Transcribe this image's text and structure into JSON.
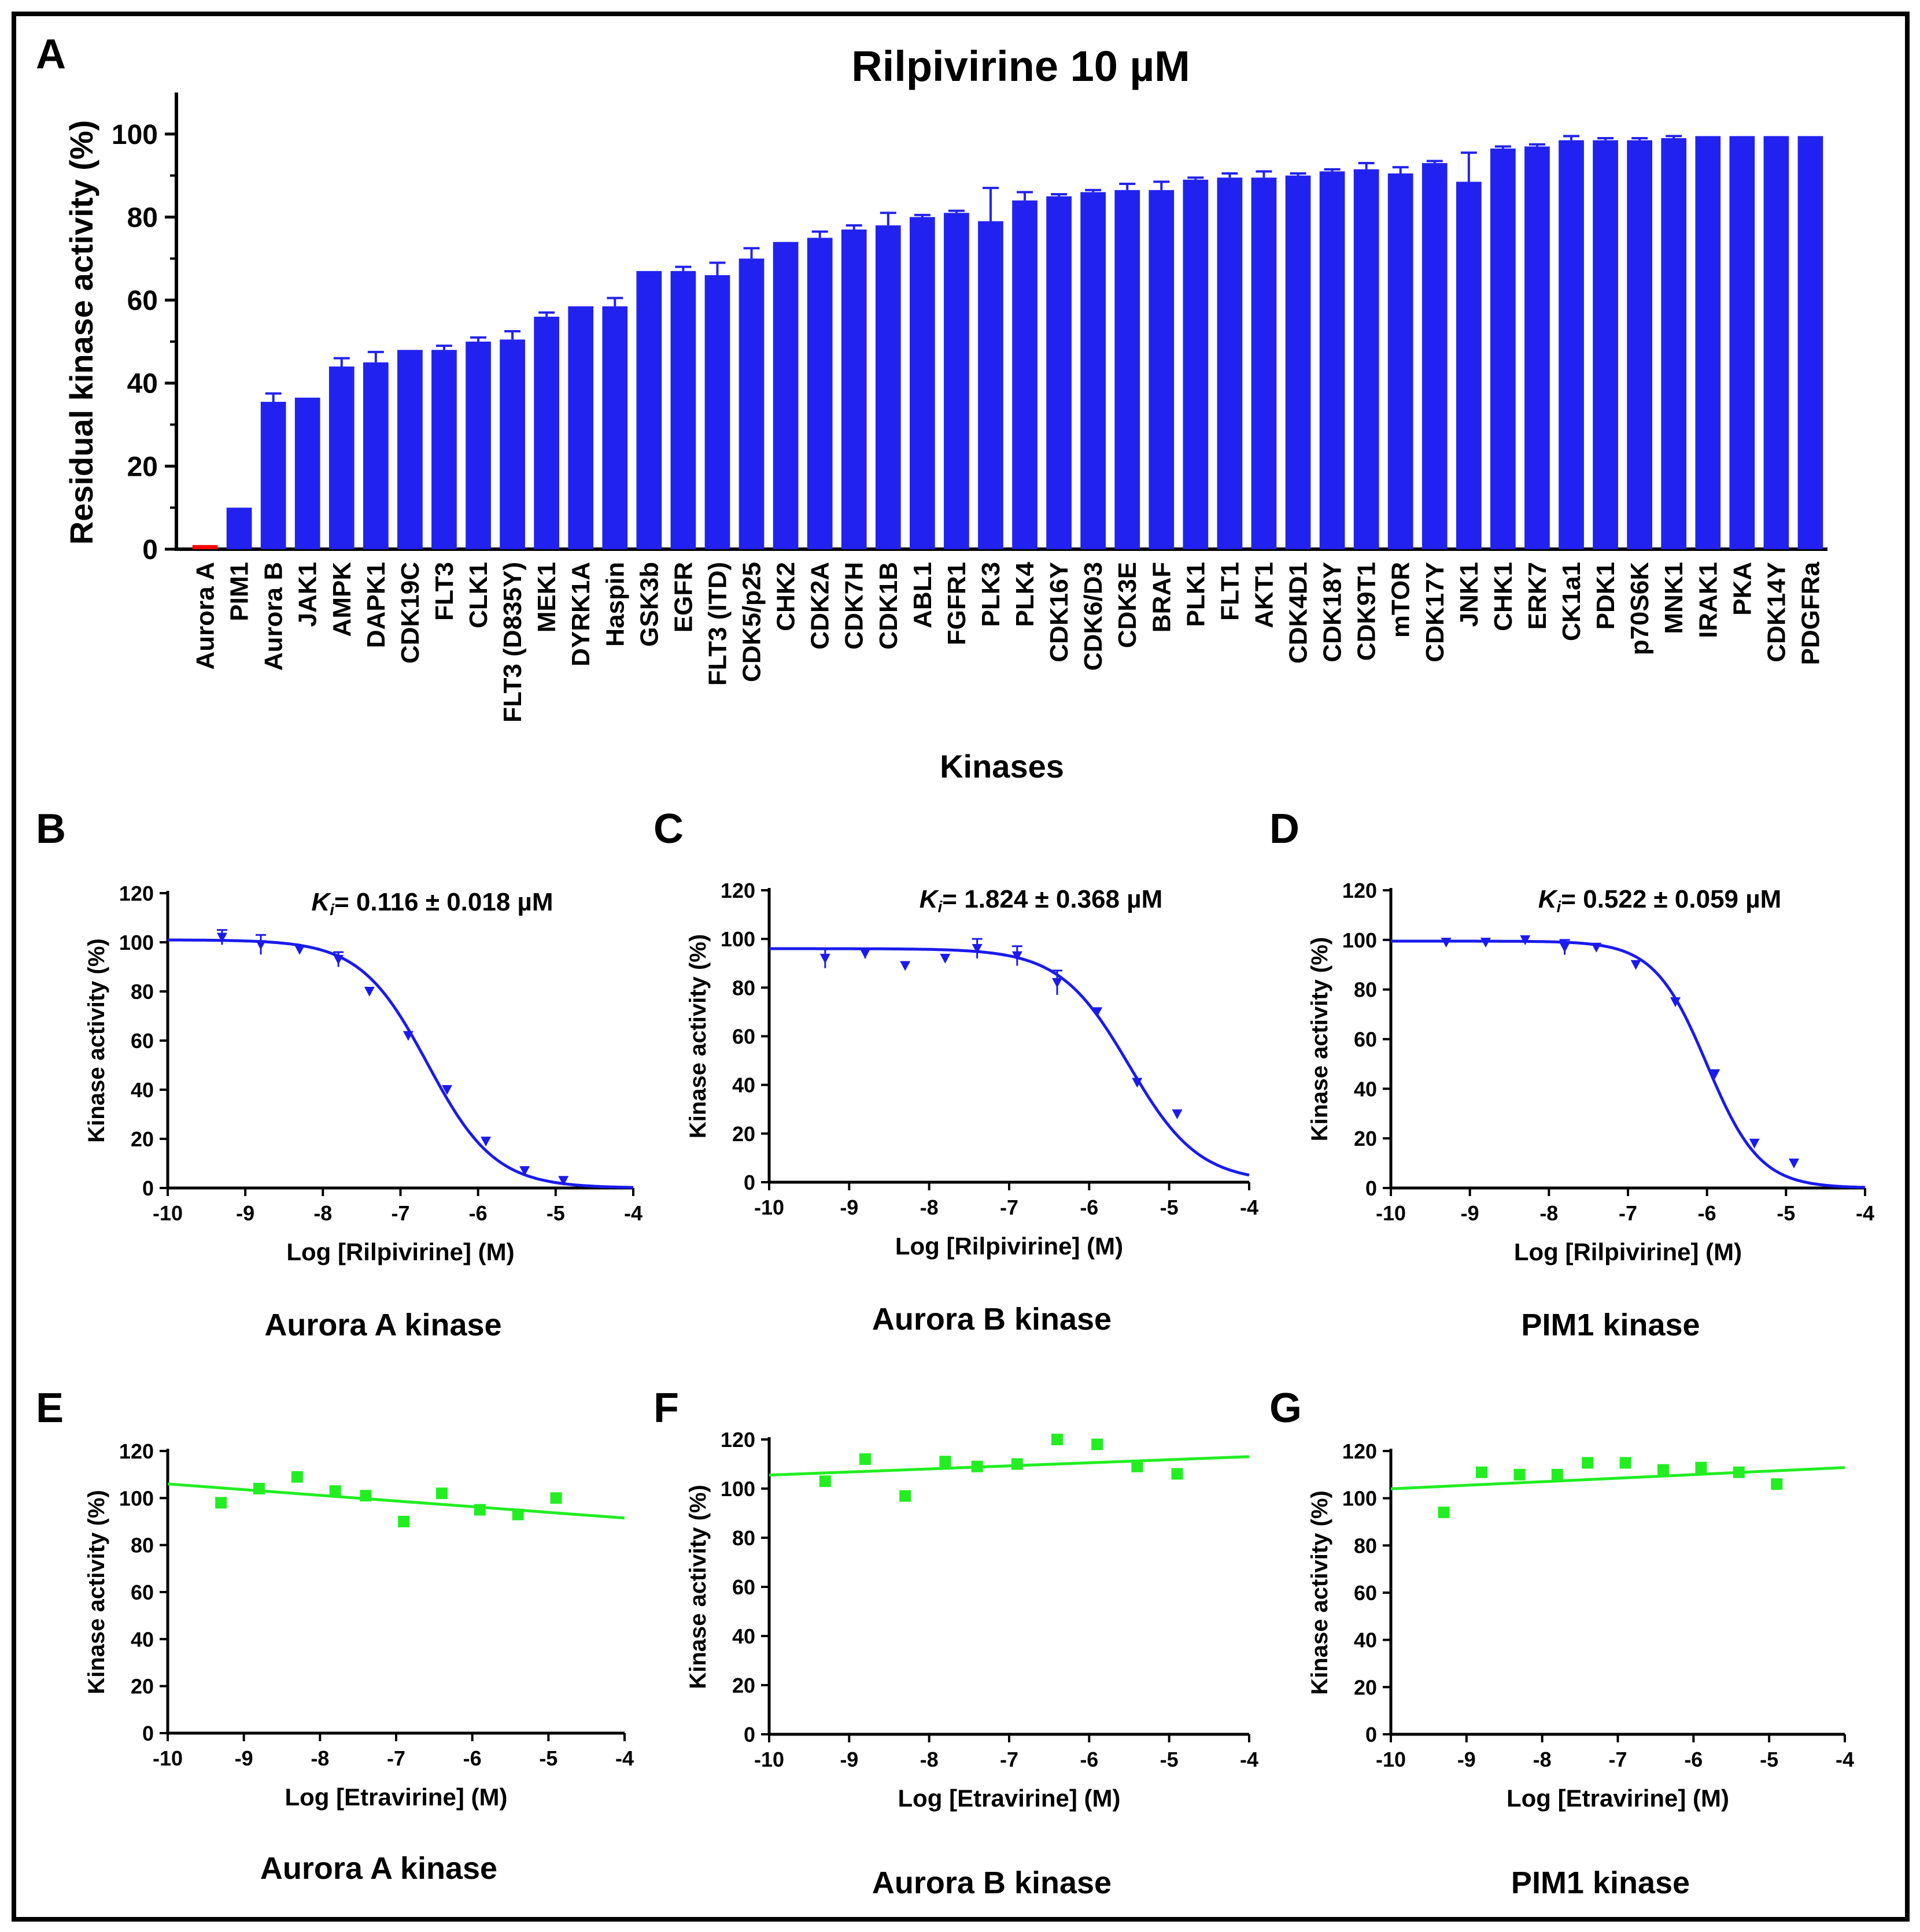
{
  "colors": {
    "bar": "#2222f0",
    "bar_highlight": "#ff0000",
    "curve_rilpivirine": "#1a1aee",
    "curve_etravirine": "#22ee22",
    "axis": "#000000",
    "frame": "#000000"
  },
  "chart_data": [
    {
      "panel": "A",
      "type": "bar",
      "title": "Rilpivirine 10 µM",
      "xlabel": "Kinases",
      "ylabel": "Residual kinase activity (%)",
      "ylim": [
        0,
        110
      ],
      "yticks": [
        "0",
        "20",
        "40",
        "60",
        "80",
        "100"
      ],
      "categories": [
        "Aurora A",
        "PIM1",
        "Aurora B",
        "JAK1",
        "AMPK",
        "DAPK1",
        "CDK19C",
        "FLT3",
        "CLK1",
        "FLT3 (D835Y)",
        "MEK1",
        "DYRK1A",
        "Haspin",
        "GSK3b",
        "EGFR",
        "FLT3 (ITD)",
        "CDK5/p25",
        "CHK2",
        "CDK2A",
        "CDK7H",
        "CDK1B",
        "ABL1",
        "FGFR1",
        "PLK3",
        "PLK4",
        "CDK16Y",
        "CDK6/D3",
        "CDK3E",
        "BRAF",
        "PLK1",
        "FLT1",
        "AKT1",
        "CDK4D1",
        "CDK18Y",
        "CDK9T1",
        "mTOR",
        "CDK17Y",
        "JNK1",
        "CHK1",
        "ERK7",
        "CK1a1",
        "PDK1",
        "p70S6K",
        "MNK1",
        "IRAK1",
        "PKA",
        "CDK14Y",
        "PDGFRa"
      ],
      "values": [
        1,
        10,
        35.5,
        36.5,
        44,
        45,
        48,
        48,
        50,
        50.5,
        56,
        58.5,
        58.5,
        67,
        67,
        66,
        70,
        74,
        75,
        77,
        78,
        80,
        81,
        79,
        84,
        85,
        86,
        86.5,
        86.5,
        89,
        89.5,
        89.5,
        90,
        91,
        91.5,
        90.5,
        93,
        88.5,
        96.5,
        97,
        98.5,
        98.5,
        98.5,
        99,
        99.5,
        99.5,
        99.5,
        99.5
      ],
      "errors": [
        0,
        0,
        2,
        0,
        2,
        2.5,
        0,
        1,
        1,
        2,
        1,
        0,
        2,
        0,
        1,
        3,
        2.5,
        0,
        1.5,
        1,
        3,
        0.5,
        0.5,
        8,
        2,
        0.5,
        0.5,
        1.5,
        2,
        0.5,
        1,
        1.5,
        0.5,
        0.5,
        1.5,
        1.5,
        0.5,
        7,
        0.5,
        0.5,
        1,
        0.5,
        0.5,
        0.5,
        0,
        0,
        0,
        0
      ],
      "highlight": "Aurora A"
    },
    {
      "panel": "B",
      "type": "line",
      "annotation_prefix": "Ki",
      "annotation_sub": "i",
      "annotation_value": "= 0.116 ± 0.018  µM",
      "xlabel": "Log [Rilpivirine] (M)",
      "ylabel": "Kinase activity (%)",
      "caption": "Aurora A kinase",
      "xlim": [
        -10,
        -4
      ],
      "ylim": [
        0,
        120
      ],
      "xticks": [
        "-10",
        "-9",
        "-8",
        "-7",
        "-6",
        "-5",
        "-4"
      ],
      "yticks": [
        "0",
        "20",
        "40",
        "60",
        "80",
        "100",
        "120"
      ],
      "x": [
        -9.3,
        -8.8,
        -8.3,
        -7.8,
        -7.4,
        -6.9,
        -6.4,
        -5.9,
        -5.4,
        -4.9
      ],
      "y": [
        102,
        99,
        97,
        93,
        80,
        62,
        40,
        19,
        7,
        3
      ],
      "yerr": [
        3,
        4,
        1,
        3,
        1,
        1,
        1,
        1,
        1,
        1
      ],
      "fit": {
        "top": 101,
        "bottom": 0,
        "logic50": -6.65,
        "hill": 1
      }
    },
    {
      "panel": "C",
      "type": "line",
      "annotation_prefix": "Ki",
      "annotation_sub": "i",
      "annotation_value": "= 1.824 ± 0.368  µM",
      "xlabel": "Log [Rilpivirine] (M)",
      "ylabel": "Kinase activity (%)",
      "caption": "Aurora B kinase",
      "xlim": [
        -10,
        -4
      ],
      "ylim": [
        0,
        120
      ],
      "xticks": [
        "-10",
        "-9",
        "-8",
        "-7",
        "-6",
        "-5",
        "-4"
      ],
      "yticks": [
        "0",
        "20",
        "40",
        "60",
        "80",
        "100",
        "120"
      ],
      "x": [
        -9.3,
        -8.8,
        -8.3,
        -7.8,
        -7.4,
        -6.9,
        -6.4,
        -5.9,
        -5.4,
        -4.9
      ],
      "y": [
        92,
        94,
        89,
        92,
        96,
        93,
        82,
        70,
        41,
        28
      ],
      "yerr": [
        4,
        2,
        1,
        1,
        4,
        4,
        5,
        1,
        1,
        1
      ],
      "fit": {
        "top": 96,
        "bottom": 0,
        "logic50": -5.5,
        "hill": 1
      }
    },
    {
      "panel": "D",
      "type": "line",
      "annotation_prefix": "Ki",
      "annotation_sub": "i",
      "annotation_value": "= 0.522 ± 0.059  µM",
      "xlabel": "Log [Rilpivirine] (M)",
      "ylabel": "Kinase activity (%)",
      "caption": "PIM1 kinase",
      "xlim": [
        -10,
        -4
      ],
      "ylim": [
        0,
        120
      ],
      "xticks": [
        "-10",
        "-9",
        "-8",
        "-7",
        "-6",
        "-5",
        "-4"
      ],
      "yticks": [
        "0",
        "20",
        "40",
        "60",
        "80",
        "100",
        "120"
      ],
      "x": [
        -9.3,
        -8.8,
        -8.3,
        -7.8,
        -7.4,
        -6.9,
        -6.4,
        -5.9,
        -5.4,
        -4.9
      ],
      "y": [
        99,
        99,
        100,
        97,
        97,
        90,
        75,
        46,
        18,
        10
      ],
      "yerr": [
        1,
        1,
        1,
        3,
        1,
        1,
        1,
        1,
        1,
        1
      ],
      "fit": {
        "top": 99.5,
        "bottom": 0,
        "logic50": -6.0,
        "hill": 1.3
      }
    },
    {
      "panel": "E",
      "type": "scatter",
      "xlabel": "Log [Etravirine] (M)",
      "ylabel": "Kinase activity (%)",
      "caption": "Aurora A kinase",
      "xlim": [
        -10,
        -4
      ],
      "ylim": [
        0,
        120
      ],
      "xticks": [
        "-10",
        "-9",
        "-8",
        "-7",
        "-6",
        "-5",
        "-4"
      ],
      "yticks": [
        "0",
        "20",
        "40",
        "60",
        "80",
        "100",
        "120"
      ],
      "x": [
        -9.3,
        -8.8,
        -8.3,
        -7.8,
        -7.4,
        -6.9,
        -6.4,
        -5.9,
        -5.4,
        -4.9
      ],
      "y": [
        98,
        104,
        109,
        103,
        101,
        90,
        102,
        95,
        93,
        100
      ],
      "fit_line": {
        "x": [
          -10,
          -4
        ],
        "y": [
          106,
          91.5
        ]
      }
    },
    {
      "panel": "F",
      "type": "scatter",
      "xlabel": "Log [Etravirine] (M)",
      "ylabel": "Kinase activity (%)",
      "caption": "Aurora B kinase",
      "xlim": [
        -10,
        -4
      ],
      "ylim": [
        0,
        120
      ],
      "xticks": [
        "-10",
        "-9",
        "-8",
        "-7",
        "-6",
        "-5",
        "-4"
      ],
      "yticks": [
        "0",
        "20",
        "40",
        "60",
        "80",
        "100",
        "120"
      ],
      "x": [
        -9.3,
        -8.8,
        -8.3,
        -7.8,
        -7.4,
        -6.9,
        -6.4,
        -5.9,
        -5.4,
        -4.9
      ],
      "y": [
        103,
        112,
        97,
        111,
        109,
        110,
        120,
        118,
        109,
        106
      ],
      "fit_line": {
        "x": [
          -10,
          -4
        ],
        "y": [
          105.5,
          113
        ]
      }
    },
    {
      "panel": "G",
      "type": "scatter",
      "xlabel": "Log [Etravirine] (M)",
      "ylabel": "Kinase activity (%)",
      "caption": "PIM1 kinase",
      "xlim": [
        -10,
        -4
      ],
      "ylim": [
        0,
        120
      ],
      "xticks": [
        "-10",
        "-9",
        "-8",
        "-7",
        "-6",
        "-5",
        "-4"
      ],
      "yticks": [
        "0",
        "20",
        "40",
        "60",
        "80",
        "100",
        "120"
      ],
      "x": [
        -9.3,
        -8.8,
        -8.3,
        -7.8,
        -7.4,
        -6.9,
        -6.4,
        -5.9,
        -5.4,
        -4.9
      ],
      "y": [
        94,
        111,
        110,
        110,
        115,
        115,
        112,
        113,
        111,
        106
      ],
      "fit_line": {
        "x": [
          -10,
          -4
        ],
        "y": [
          104,
          113
        ]
      }
    }
  ]
}
